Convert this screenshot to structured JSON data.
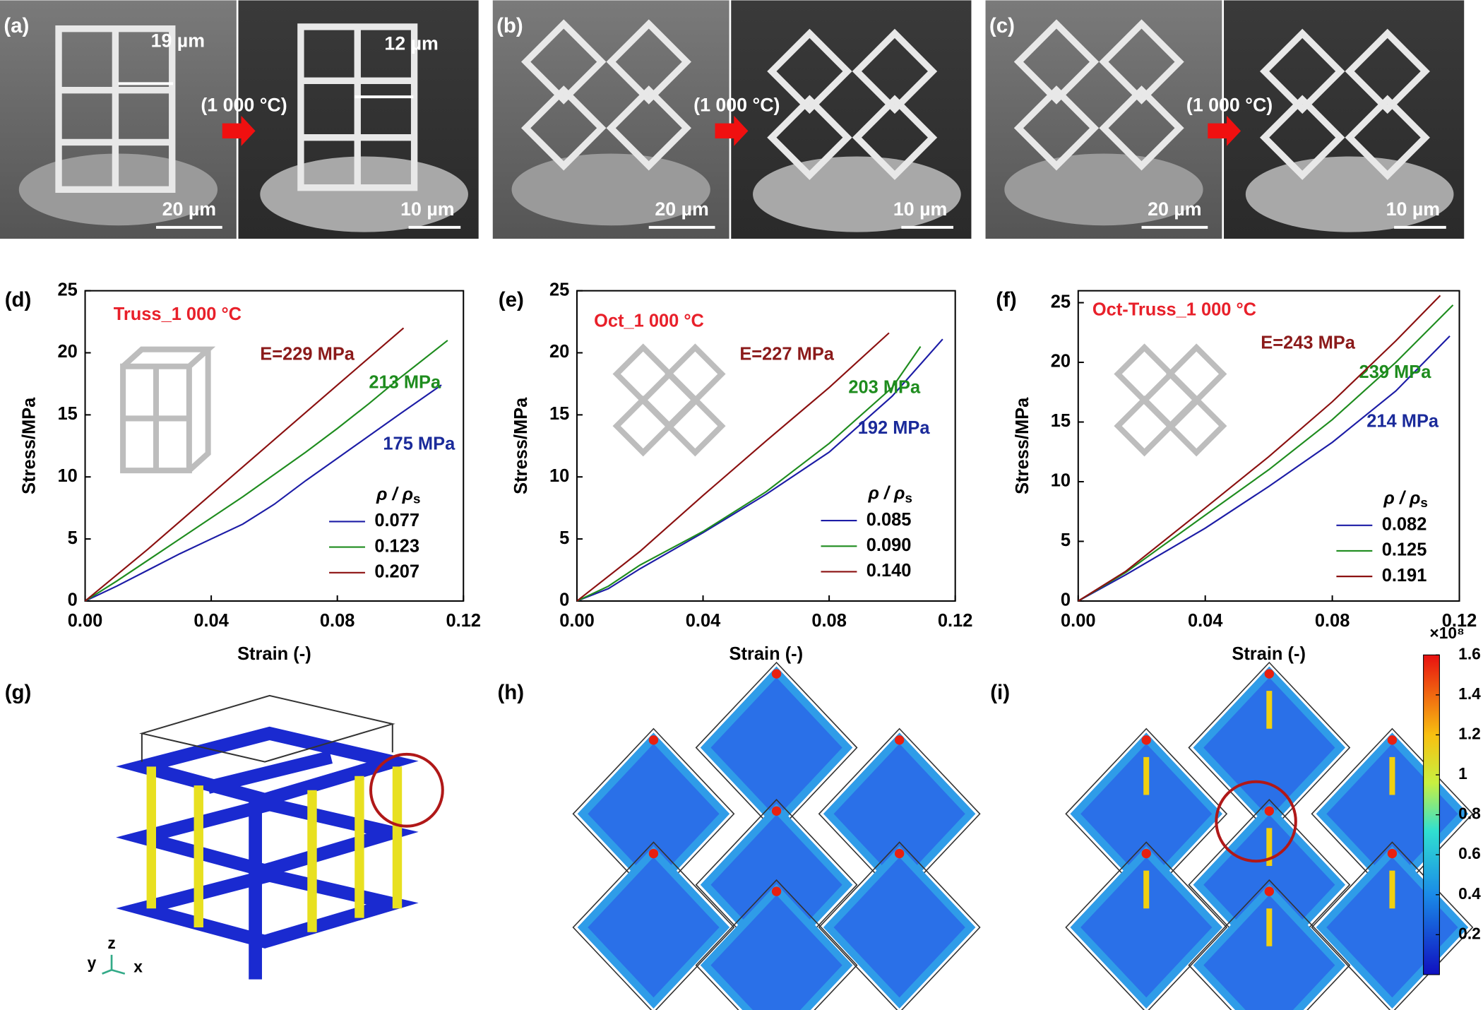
{
  "sem_panels": [
    {
      "label": "(a)",
      "width_before": "19 µm",
      "width_after": "12 µm",
      "condition": "(1 000 °C)",
      "scale_before": "20 µm",
      "scale_after": "10 µm"
    },
    {
      "label": "(b)",
      "condition": "(1 000 °C)",
      "scale_before": "20 µm",
      "scale_after": "10 µm"
    },
    {
      "label": "(c)",
      "condition": "(1 000 °C)",
      "scale_before": "20 µm",
      "scale_after": "10 µm"
    }
  ],
  "chart_data": [
    {
      "type": "line",
      "panel": "(d)",
      "title": "Truss_1 000 °C",
      "xlabel": "Strain (-)",
      "ylabel": "Stress/MPa",
      "xlim": [
        0,
        0.12
      ],
      "ylim": [
        0,
        25
      ],
      "xticks": [
        {
          "value": 0,
          "label": "0.00"
        },
        0.04,
        0.08,
        0.12
      ],
      "yticks": [
        0,
        5,
        10,
        15,
        20,
        25
      ],
      "legend_title": "ρ / ρ",
      "legend_title_subscript": "s",
      "series": [
        {
          "name": "0.077",
          "color": "#1c1ca6",
          "label": "175 MPa",
          "x": [
            0,
            0.01,
            0.02,
            0.03,
            0.04,
            0.05,
            0.06,
            0.07,
            0.08,
            0.09,
            0.1,
            0.113
          ],
          "values": [
            0,
            1.2,
            2.5,
            3.8,
            5.0,
            6.2,
            7.8,
            9.7,
            11.5,
            13.3,
            15.1,
            17.4
          ]
        },
        {
          "name": "0.123",
          "color": "#1e8c1e",
          "label": "213 MPa",
          "x": [
            0,
            0.01,
            0.02,
            0.03,
            0.04,
            0.05,
            0.06,
            0.07,
            0.08,
            0.09,
            0.1,
            0.115
          ],
          "values": [
            0,
            1.6,
            3.3,
            5.0,
            6.7,
            8.4,
            10.2,
            12.0,
            13.9,
            15.9,
            18.0,
            21.0
          ]
        },
        {
          "name": "0.207",
          "color": "#8b1010",
          "label": "E=229 MPa",
          "x": [
            0,
            0.02,
            0.04,
            0.06,
            0.08,
            0.101
          ],
          "values": [
            0,
            4.2,
            8.6,
            13.0,
            17.4,
            22.0
          ]
        }
      ]
    },
    {
      "type": "line",
      "panel": "(e)",
      "title": "Oct_1 000 °C",
      "xlabel": "Strain (-)",
      "ylabel": "Stress/MPa",
      "xlim": [
        0,
        0.12
      ],
      "ylim": [
        0,
        25
      ],
      "xticks": [
        {
          "value": 0,
          "label": "0.00"
        },
        0.04,
        0.08,
        0.12
      ],
      "yticks": [
        0,
        5,
        10,
        15,
        20,
        25
      ],
      "legend_title": "ρ / ρ",
      "legend_title_subscript": "s",
      "series": [
        {
          "name": "0.085",
          "color": "#1c1ca6",
          "label": "192 MPa",
          "x": [
            0,
            0.01,
            0.02,
            0.04,
            0.06,
            0.08,
            0.1,
            0.116
          ],
          "values": [
            0,
            1.0,
            2.6,
            5.5,
            8.6,
            12.0,
            16.5,
            21.1
          ]
        },
        {
          "name": "0.090",
          "color": "#1e8c1e",
          "label": "203 MPa",
          "x": [
            0,
            0.01,
            0.02,
            0.04,
            0.06,
            0.08,
            0.1,
            0.109
          ],
          "values": [
            0,
            1.2,
            2.9,
            5.6,
            8.8,
            12.7,
            17.2,
            20.5
          ]
        },
        {
          "name": "0.140",
          "color": "#8b1010",
          "label": "E=227 MPa",
          "x": [
            0,
            0.02,
            0.04,
            0.06,
            0.08,
            0.099
          ],
          "values": [
            0,
            4.0,
            8.5,
            12.9,
            17.2,
            21.6
          ]
        }
      ]
    },
    {
      "type": "line",
      "panel": "(f)",
      "title": "Oct-Truss_1 000 °C",
      "xlabel": "Strain (-)",
      "ylabel": "Stress/MPa",
      "xlim": [
        0,
        0.12
      ],
      "ylim": [
        0,
        26
      ],
      "xticks": [
        {
          "value": 0,
          "label": "0.00"
        },
        0.04,
        0.08,
        0.12
      ],
      "yticks": [
        0,
        5,
        10,
        15,
        20,
        25
      ],
      "legend_title": "ρ / ρ",
      "legend_title_subscript": "s",
      "series": [
        {
          "name": "0.082",
          "color": "#1c1ca6",
          "label": "214 MPa",
          "x": [
            0,
            0.015,
            0.04,
            0.06,
            0.08,
            0.1,
            0.117
          ],
          "values": [
            0,
            2.2,
            6.1,
            9.6,
            13.3,
            17.6,
            22.2
          ]
        },
        {
          "name": "0.125",
          "color": "#1e8c1e",
          "label": "239 MPa",
          "x": [
            0,
            0.015,
            0.04,
            0.06,
            0.08,
            0.1,
            0.118
          ],
          "values": [
            0,
            2.4,
            7.2,
            11.0,
            15.2,
            20.0,
            24.8
          ]
        },
        {
          "name": "0.191",
          "color": "#8b1010",
          "label": "E=243 MPa",
          "x": [
            0,
            0.015,
            0.04,
            0.06,
            0.08,
            0.1,
            0.114
          ],
          "values": [
            0,
            2.5,
            7.8,
            12.1,
            16.7,
            21.8,
            25.6
          ]
        }
      ]
    }
  ],
  "fea_panels": [
    {
      "label": "(g)",
      "axes": [
        "z",
        "y",
        "x"
      ]
    },
    {
      "label": "(h)"
    },
    {
      "label": "(i)"
    }
  ],
  "colorbar": {
    "multiplier": "×10⁸",
    "lim": [
      0,
      1.6
    ],
    "ticks": [
      0.2,
      0.4,
      0.6,
      0.8,
      1,
      1.2,
      1.4,
      1.6
    ]
  }
}
